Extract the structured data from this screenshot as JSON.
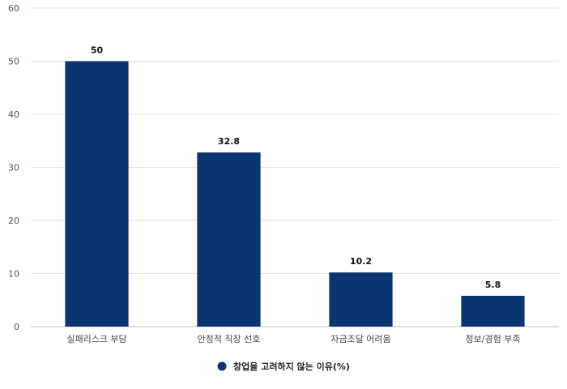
{
  "chart_data": {
    "type": "bar",
    "categories": [
      "실패리스크 부담",
      "안정적 직장 선호",
      "자금조달 어려움",
      "정보/경험 부족"
    ],
    "series": [
      {
        "name": "창업을 고려하지 않는 이유(%)",
        "values": [
          50,
          32.8,
          10.2,
          5.8
        ]
      }
    ],
    "data_labels": [
      "50",
      "32.8",
      "10.2",
      "5.8"
    ],
    "y_ticks": [
      0,
      10,
      20,
      30,
      40,
      50,
      60
    ],
    "ylim": [
      0,
      60
    ],
    "grid": true,
    "legend_position": "bottom-center",
    "colors": {
      "bar": "#0b3570",
      "grid": "#e6e6e6",
      "axis": "#bfbfbf"
    }
  }
}
